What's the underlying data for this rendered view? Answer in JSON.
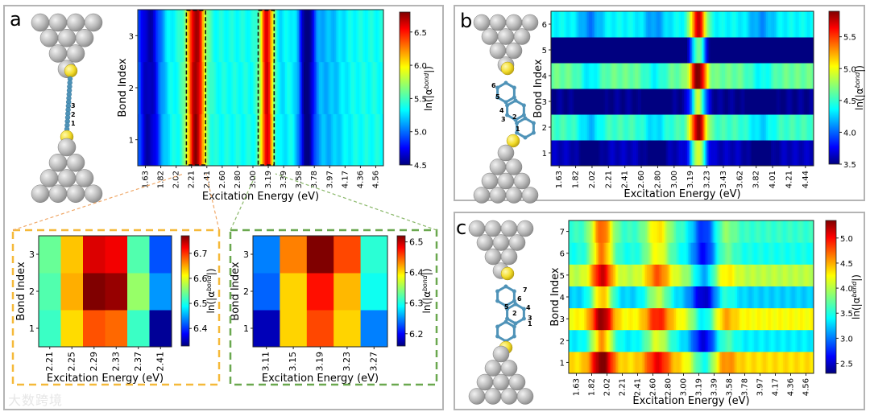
{
  "page": {
    "watermark": "大数跨境"
  },
  "chart_data": [
    {
      "id": "a",
      "panel_label": "a",
      "type": "heatmap",
      "title": "",
      "xlabel": "Excitation Energy (eV)",
      "ylabel": "Bond Index",
      "colorbar_label": "ln(|α^bond|)",
      "x_ticks": [
        "1.63",
        "1.82",
        "2.02",
        "2.21",
        "2.41",
        "2.60",
        "2.80",
        "3.00",
        "3.19",
        "3.39",
        "3.58",
        "3.78",
        "3.97",
        "4.17",
        "4.36",
        "4.56"
      ],
      "x_range": [
        1.58,
        4.66
      ],
      "y_categories": [
        "1",
        "2",
        "3"
      ],
      "colorbar_ticks": [
        "4.5",
        "5.0",
        "5.5",
        "6.0",
        "6.5"
      ],
      "value_range": [
        4.5,
        6.8
      ],
      "background_level": 5.4,
      "peaks": [
        {
          "center": 2.31,
          "width": 0.11,
          "amplitude": 1.35
        },
        {
          "center": 3.2,
          "width": 0.08,
          "amplitude": 1.2
        },
        {
          "center": 3.36,
          "width": 0.1,
          "amplitude": -0.1
        },
        {
          "center": 3.7,
          "width": 0.1,
          "amplitude": -0.9
        },
        {
          "center": 3.95,
          "width": 0.22,
          "amplitude": -0.2
        },
        {
          "center": 1.72,
          "width": 0.16,
          "amplitude": -0.8
        }
      ],
      "highlight_ranges": [
        [
          2.19,
          2.43
        ],
        [
          3.09,
          3.29
        ]
      ],
      "molecule_bonds": [
        "3",
        "2",
        "1"
      ]
    },
    {
      "id": "a1",
      "type": "heatmap",
      "xlabel": "Excitation Energy (eV)",
      "ylabel": "Bond Index",
      "colorbar_label": "ln(|α^bond|)",
      "x_ticks": [
        "2.21",
        "2.25",
        "2.29",
        "2.33",
        "2.37",
        "2.41"
      ],
      "y_categories": [
        "1",
        "2",
        "3"
      ],
      "colorbar_ticks": [
        "6.4",
        "6.5",
        "6.6",
        "6.7"
      ],
      "value_range": [
        6.33,
        6.77
      ],
      "values": [
        [
          6.52,
          6.62,
          6.68,
          6.67,
          6.52,
          6.34
        ],
        [
          6.53,
          6.64,
          6.77,
          6.76,
          6.56,
          6.45
        ],
        [
          6.54,
          6.63,
          6.73,
          6.72,
          6.53,
          6.42
        ]
      ]
    },
    {
      "id": "a2",
      "type": "heatmap",
      "xlabel": "Excitation Energy (eV)",
      "ylabel": "Bond Index",
      "colorbar_label": "ln(|α^bond|)",
      "x_ticks": [
        "3.11",
        "3.15",
        "3.19",
        "3.23",
        "3.27"
      ],
      "y_categories": [
        "1",
        "2",
        "3"
      ],
      "colorbar_ticks": [
        "6.2",
        "6.3",
        "6.4",
        "6.5"
      ],
      "value_range": [
        6.16,
        6.52
      ],
      "values": [
        [
          6.18,
          6.4,
          6.45,
          6.4,
          6.25
        ],
        [
          6.24,
          6.4,
          6.47,
          6.41,
          6.3
        ],
        [
          6.25,
          6.43,
          6.52,
          6.45,
          6.31
        ]
      ]
    },
    {
      "id": "b",
      "panel_label": "b",
      "type": "heatmap",
      "xlabel": "Excitation Energy (eV)",
      "ylabel": "Bond Index",
      "colorbar_label": "ln(|α^bond|)",
      "x_ticks": [
        "1.63",
        "1.82",
        "2.02",
        "2.21",
        "2.41",
        "2.60",
        "2.80",
        "3.00",
        "3.19",
        "3.23",
        "3.43",
        "3.62",
        "3.82",
        "4.01",
        "4.21",
        "4.44"
      ],
      "x_range": [
        1.58,
        4.54
      ],
      "y_categories": [
        "1",
        "2",
        "3",
        "4",
        "5",
        "6"
      ],
      "colorbar_ticks": [
        "3.5",
        "4.0",
        "4.5",
        "5.0",
        "5.5"
      ],
      "value_range": [
        3.5,
        5.9
      ],
      "row_offsets": [
        -0.65,
        0.25,
        -0.75,
        0.35,
        -0.9,
        0.1
      ],
      "background_level": 4.3,
      "peaks": [
        {
          "center": 3.24,
          "width": 0.09,
          "amplitude": 1.3
        },
        {
          "center": 2.02,
          "width": 0.13,
          "amplitude": -0.3
        },
        {
          "center": 2.75,
          "width": 0.13,
          "amplitude": -0.25
        },
        {
          "center": 3.95,
          "width": 0.15,
          "amplitude": -0.25
        }
      ],
      "molecule_bonds": [
        "6",
        "5",
        "4",
        "3",
        "2",
        "1"
      ]
    },
    {
      "id": "c",
      "panel_label": "c",
      "type": "heatmap",
      "xlabel": "Excitation Energy (eV)",
      "ylabel": "Bond Index",
      "colorbar_label": "ln(|α^bond|)",
      "x_ticks": [
        "1.63",
        "1.82",
        "2.02",
        "2.21",
        "2.41",
        "2.60",
        "2.80",
        "3.00",
        "3.19",
        "3.39",
        "3.58",
        "3.78",
        "3.97",
        "4.17",
        "4.36",
        "4.56"
      ],
      "x_range": [
        1.58,
        4.66
      ],
      "y_categories": [
        "1",
        "2",
        "3",
        "4",
        "5",
        "6",
        "7"
      ],
      "colorbar_ticks": [
        "2.5",
        "3.0",
        "3.5",
        "4.0",
        "4.5",
        "5.0"
      ],
      "value_range": [
        2.3,
        5.35
      ],
      "row_offsets": [
        0.6,
        -0.3,
        0.5,
        -0.4,
        0.3,
        -0.2,
        -0.1
      ],
      "background_level": 3.7,
      "peaks": [
        {
          "center": 2.0,
          "width": 0.14,
          "amplitude": 1.1
        },
        {
          "center": 2.7,
          "width": 0.16,
          "amplitude": 0.7
        },
        {
          "center": 3.55,
          "width": 0.14,
          "amplitude": 0.3
        },
        {
          "center": 3.28,
          "width": 0.16,
          "amplitude": -0.8
        }
      ],
      "molecule_bonds": [
        "7",
        "6",
        "5",
        "4",
        "3",
        "2",
        "1"
      ]
    }
  ]
}
